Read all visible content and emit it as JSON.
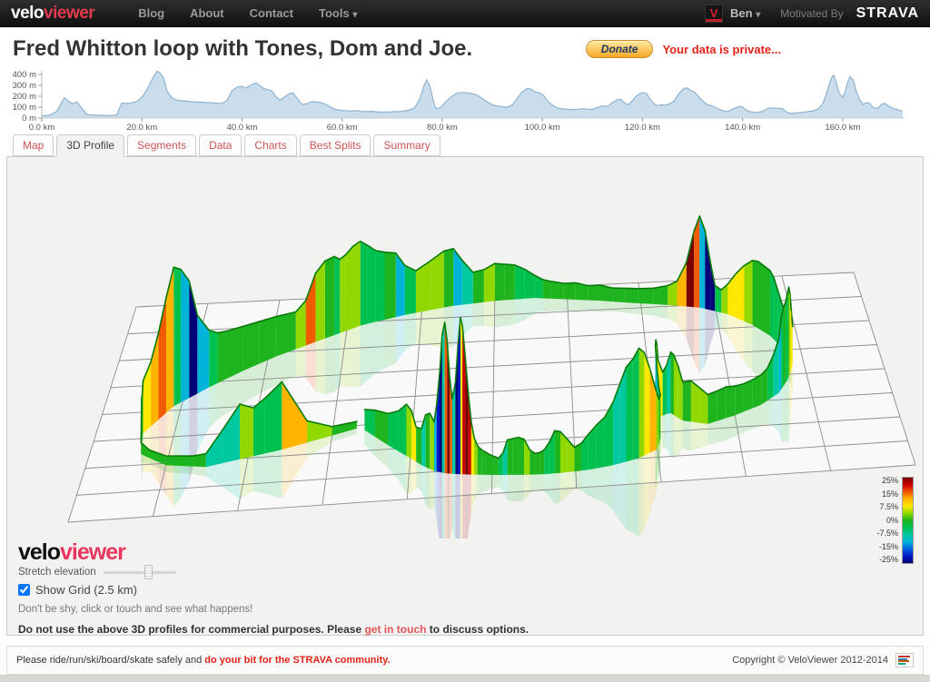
{
  "nav": {
    "logo_prefix": "velo",
    "logo_suffix": "viewer",
    "items": [
      "Blog",
      "About",
      "Contact"
    ],
    "tools_label": "Tools",
    "user_initial": "V",
    "user_name": "Ben",
    "motivated_by": "Motivated By",
    "strava": "STRAVA"
  },
  "icons": {
    "chevron_down": "▾"
  },
  "header": {
    "title": "Fred Whitton loop with Tones, Dom and Joe.",
    "donate_label": "Donate",
    "privacy_note": "Your data is private..."
  },
  "tabs": [
    {
      "label": "Map",
      "active": false
    },
    {
      "label": "3D Profile",
      "active": true
    },
    {
      "label": "Segments",
      "active": false
    },
    {
      "label": "Data",
      "active": false
    },
    {
      "label": "Charts",
      "active": false
    },
    {
      "label": "Best Splits",
      "active": false
    },
    {
      "label": "Summary",
      "active": false
    }
  ],
  "chart_data": [
    {
      "type": "area",
      "title": "elevation profile",
      "xlabel": "distance (km)",
      "ylabel": "elevation (m)",
      "xlim": [
        0,
        172
      ],
      "ylim": [
        0,
        440
      ],
      "yticks": [
        {
          "v": 0,
          "label": "0 m"
        },
        {
          "v": 100,
          "label": "100 m"
        },
        {
          "v": 200,
          "label": "200 m"
        },
        {
          "v": 300,
          "label": "300 m"
        },
        {
          "v": 400,
          "label": "400 m"
        }
      ],
      "xticks": [
        {
          "v": 0,
          "label": "0.0 km"
        },
        {
          "v": 20,
          "label": "20.0 km"
        },
        {
          "v": 40,
          "label": "40.0 km"
        },
        {
          "v": 60,
          "label": "60.0 km"
        },
        {
          "v": 80,
          "label": "80.0 km"
        },
        {
          "v": 100,
          "label": "100.0 km"
        },
        {
          "v": 120,
          "label": "120.0 km"
        },
        {
          "v": 140,
          "label": "140.0 km"
        },
        {
          "v": 160,
          "label": "160.0 km"
        }
      ],
      "fill": "#c9dded",
      "stroke": "#8fb3cf",
      "points": [
        [
          0,
          20
        ],
        [
          1.5,
          25
        ],
        [
          3,
          60
        ],
        [
          4.5,
          185
        ],
        [
          5.5,
          150
        ],
        [
          6.2,
          130
        ],
        [
          7,
          148
        ],
        [
          8,
          90
        ],
        [
          9,
          35
        ],
        [
          10,
          28
        ],
        [
          12,
          25
        ],
        [
          14,
          22
        ],
        [
          15,
          32
        ],
        [
          16,
          138
        ],
        [
          17,
          133
        ],
        [
          18,
          140
        ],
        [
          19,
          152
        ],
        [
          20,
          190
        ],
        [
          21,
          260
        ],
        [
          22,
          350
        ],
        [
          23,
          430
        ],
        [
          23.6,
          415
        ],
        [
          24.3,
          370
        ],
        [
          25,
          250
        ],
        [
          26,
          185
        ],
        [
          27,
          165
        ],
        [
          28,
          158
        ],
        [
          30,
          150
        ],
        [
          32,
          145
        ],
        [
          34,
          140
        ],
        [
          36,
          133
        ],
        [
          37,
          162
        ],
        [
          38,
          250
        ],
        [
          39,
          285
        ],
        [
          40,
          292
        ],
        [
          40.6,
          276
        ],
        [
          41.2,
          286
        ],
        [
          42,
          310
        ],
        [
          42.8,
          322
        ],
        [
          43.5,
          300
        ],
        [
          44.2,
          275
        ],
        [
          45,
          262
        ],
        [
          46,
          250
        ],
        [
          46.8,
          195
        ],
        [
          47.6,
          166
        ],
        [
          48.6,
          196
        ],
        [
          49.5,
          226
        ],
        [
          50.2,
          230
        ],
        [
          51,
          180
        ],
        [
          52,
          126
        ],
        [
          53,
          132
        ],
        [
          54,
          152
        ],
        [
          55,
          146
        ],
        [
          56,
          140
        ],
        [
          57,
          120
        ],
        [
          58,
          92
        ],
        [
          59,
          76
        ],
        [
          60,
          70
        ],
        [
          61.5,
          64
        ],
        [
          63,
          68
        ],
        [
          64.5,
          58
        ],
        [
          66,
          62
        ],
        [
          67.5,
          54
        ],
        [
          69,
          56
        ],
        [
          70.5,
          58
        ],
        [
          72,
          62
        ],
        [
          73.5,
          75
        ],
        [
          74.5,
          95
        ],
        [
          75.5,
          170
        ],
        [
          76.3,
          290
        ],
        [
          76.9,
          350
        ],
        [
          77.5,
          298
        ],
        [
          78.1,
          180
        ],
        [
          78.6,
          96
        ],
        [
          79.3,
          86
        ],
        [
          80,
          112
        ],
        [
          81,
          162
        ],
        [
          82,
          202
        ],
        [
          83,
          230
        ],
        [
          84,
          236
        ],
        [
          85,
          230
        ],
        [
          86,
          224
        ],
        [
          87,
          210
        ],
        [
          88,
          180
        ],
        [
          89,
          150
        ],
        [
          90,
          122
        ],
        [
          91,
          110
        ],
        [
          92,
          106
        ],
        [
          93,
          98
        ],
        [
          94,
          122
        ],
        [
          95,
          182
        ],
        [
          96,
          242
        ],
        [
          97,
          272
        ],
        [
          97.8,
          264
        ],
        [
          98.6,
          240
        ],
        [
          99.4,
          234
        ],
        [
          100.2,
          208
        ],
        [
          101,
          158
        ],
        [
          102,
          118
        ],
        [
          103,
          92
        ],
        [
          104,
          85
        ],
        [
          105,
          80
        ],
        [
          106,
          78
        ],
        [
          107,
          81
        ],
        [
          108,
          86
        ],
        [
          109,
          82
        ],
        [
          110,
          80
        ],
        [
          111,
          96
        ],
        [
          112,
          112
        ],
        [
          113,
          106
        ],
        [
          114,
          142
        ],
        [
          115,
          168
        ],
        [
          115.7,
          172
        ],
        [
          116.5,
          136
        ],
        [
          117.2,
          122
        ],
        [
          118,
          162
        ],
        [
          119,
          212
        ],
        [
          120,
          234
        ],
        [
          120.8,
          226
        ],
        [
          121.6,
          168
        ],
        [
          122.3,
          130
        ],
        [
          123,
          114
        ],
        [
          123.8,
          122
        ],
        [
          124.5,
          117
        ],
        [
          125.3,
          128
        ],
        [
          126.2,
          152
        ],
        [
          127.2,
          218
        ],
        [
          128,
          262
        ],
        [
          128.8,
          278
        ],
        [
          129.6,
          254
        ],
        [
          130.4,
          238
        ],
        [
          131.2,
          198
        ],
        [
          132,
          158
        ],
        [
          133,
          124
        ],
        [
          134,
          108
        ],
        [
          135,
          88
        ],
        [
          136,
          68
        ],
        [
          137,
          60
        ],
        [
          138,
          82
        ],
        [
          139,
          102
        ],
        [
          139.8,
          106
        ],
        [
          140.6,
          78
        ],
        [
          141.4,
          60
        ],
        [
          142.2,
          54
        ],
        [
          143,
          52
        ],
        [
          144,
          62
        ],
        [
          145,
          88
        ],
        [
          146,
          93
        ],
        [
          147,
          90
        ],
        [
          148,
          87
        ],
        [
          148.8,
          54
        ],
        [
          149.6,
          42
        ],
        [
          150.5,
          46
        ],
        [
          151.5,
          50
        ],
        [
          152.5,
          56
        ],
        [
          153.5,
          62
        ],
        [
          154.5,
          72
        ],
        [
          155.3,
          92
        ],
        [
          156,
          132
        ],
        [
          156.6,
          202
        ],
        [
          157.2,
          292
        ],
        [
          157.8,
          372
        ],
        [
          158.2,
          393
        ],
        [
          158.7,
          328
        ],
        [
          159.3,
          228
        ],
        [
          160,
          188
        ],
        [
          160.5,
          242
        ],
        [
          161,
          332
        ],
        [
          161.5,
          380
        ],
        [
          162.1,
          348
        ],
        [
          162.7,
          248
        ],
        [
          163.4,
          168
        ],
        [
          164,
          124
        ],
        [
          164.7,
          142
        ],
        [
          165.4,
          134
        ],
        [
          166.1,
          94
        ],
        [
          167,
          90
        ],
        [
          167.8,
          126
        ],
        [
          168.4,
          136
        ],
        [
          169.2,
          108
        ],
        [
          170.2,
          86
        ],
        [
          171.2,
          74
        ],
        [
          172,
          58
        ]
      ]
    },
    {
      "type": "3d-ribbon",
      "title": "3D elevation profile coloured by gradient",
      "grid": {
        "cols": 10,
        "rows": 8,
        "spacing_label": "2.5 km"
      },
      "legend": {
        "labels": [
          "25%",
          "15%",
          "7.5%",
          "0%",
          "-7.5%",
          "-15%",
          "-25%"
        ],
        "colors": [
          "#7a0000",
          "#cc0000",
          "#f05a00",
          "#ffb400",
          "#ffe800",
          "#90d800",
          "#1eb41e",
          "#00c050",
          "#00c8a0",
          "#00b4d8",
          "#0064e0",
          "#0018c8",
          "#000078"
        ]
      },
      "ribbon_top_color": "#0a7a0a",
      "route_plan": [
        [
          0,
          0.33,
          0.36
        ],
        [
          4.5,
          0.24,
          0.28
        ],
        [
          9,
          0.15,
          0.22
        ],
        [
          12,
          0.1,
          0.24
        ],
        [
          15,
          0.065,
          0.3
        ],
        [
          19,
          0.06,
          0.4
        ],
        [
          23,
          0.09,
          0.52
        ],
        [
          26,
          0.13,
          0.6
        ],
        [
          30,
          0.17,
          0.67
        ],
        [
          34,
          0.21,
          0.73
        ],
        [
          38,
          0.26,
          0.79
        ],
        [
          43,
          0.32,
          0.86
        ],
        [
          47,
          0.38,
          0.9
        ],
        [
          50,
          0.44,
          0.93
        ],
        [
          54,
          0.5,
          0.945
        ],
        [
          58,
          0.555,
          0.95
        ],
        [
          62,
          0.6,
          0.935
        ],
        [
          66,
          0.645,
          0.92
        ],
        [
          70,
          0.69,
          0.9
        ],
        [
          73,
          0.73,
          0.885
        ],
        [
          77,
          0.78,
          0.86
        ],
        [
          80,
          0.815,
          0.82
        ],
        [
          83,
          0.845,
          0.76
        ],
        [
          86,
          0.865,
          0.7
        ],
        [
          90,
          0.88,
          0.62
        ],
        [
          94,
          0.885,
          0.545
        ],
        [
          97.7,
          0.875,
          0.475
        ],
        [
          101,
          0.86,
          0.41
        ],
        [
          104,
          0.835,
          0.355
        ],
        [
          107,
          0.8,
          0.31
        ],
        [
          110,
          0.765,
          0.275
        ],
        [
          113,
          0.735,
          0.3
        ],
        [
          116,
          0.72,
          0.345
        ],
        [
          118,
          0.705,
          0.32
        ],
        [
          120.7,
          0.7,
          0.27
        ],
        [
          123,
          0.705,
          0.215
        ],
        [
          126,
          0.7,
          0.165
        ],
        [
          129,
          0.675,
          0.125
        ],
        [
          132,
          0.645,
          0.1
        ],
        [
          135,
          0.615,
          0.085
        ],
        [
          138,
          0.59,
          0.08
        ],
        [
          141,
          0.565,
          0.078
        ],
        [
          144,
          0.545,
          0.08
        ],
        [
          147,
          0.525,
          0.085
        ],
        [
          150,
          0.505,
          0.09
        ],
        [
          153,
          0.49,
          0.095
        ],
        [
          156,
          0.475,
          0.1
        ],
        [
          158.2,
          0.462,
          0.105
        ],
        [
          160,
          0.452,
          0.11
        ],
        [
          161.5,
          0.443,
          0.115
        ],
        [
          164,
          0.43,
          0.13
        ],
        [
          166,
          0.415,
          0.16
        ],
        [
          168,
          0.4,
          0.2
        ],
        [
          170,
          0.375,
          0.26
        ],
        [
          172,
          0.34,
          0.35
        ]
      ]
    }
  ],
  "controls": {
    "logo_prefix": "velo",
    "logo_suffix": "viewer",
    "stretch_label": "Stretch elevation",
    "slider_pos": 0.65,
    "show_grid_label": "Show Grid (2.5 km)",
    "show_grid_checked": true,
    "hint": "Don't be shy, click or touch and see what happens!",
    "notice_plain": "Do not use the above 3D profiles for commercial purposes. Please ",
    "notice_link": "get in touch",
    "notice_tail": " to discuss options."
  },
  "footer": {
    "safety_plain": "Please ride/run/ski/board/skate safely and ",
    "safety_link": "do your bit for the STRAVA community.",
    "copyright": "Copyright © VeloViewer 2012-2014",
    "stats_icon_colors": [
      "#c0392b",
      "#2980b9",
      "#d35400",
      "#16a085"
    ],
    "stats_icon_widths": [
      13,
      10,
      12,
      8
    ]
  }
}
